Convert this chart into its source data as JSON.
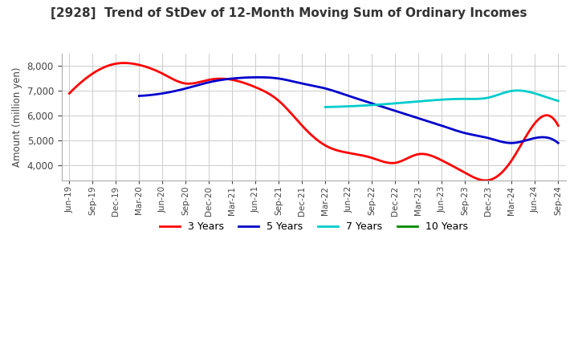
{
  "title": "[2928]  Trend of StDev of 12-Month Moving Sum of Ordinary Incomes",
  "ylabel": "Amount (million yen)",
  "ylim": [
    3400,
    8500
  ],
  "yticks": [
    4000,
    5000,
    6000,
    7000,
    8000
  ],
  "background_color": "#ffffff",
  "grid_color": "#cccccc",
  "series": {
    "3 Years": {
      "color": "#ff0000",
      "x": [
        0,
        3,
        6,
        9,
        12,
        15,
        18,
        21,
        24,
        27,
        30,
        33,
        36,
        39,
        42,
        45,
        48,
        51,
        54,
        57,
        60,
        63
      ],
      "y": [
        6900,
        7700,
        8100,
        8050,
        7700,
        7300,
        7450,
        7450,
        7150,
        6600,
        5600,
        4800,
        4500,
        4300,
        4100,
        4450,
        4200,
        3700,
        3400,
        4200,
        5700,
        5600
      ]
    },
    "5 Years": {
      "color": "#0000cc",
      "x": [
        9,
        12,
        15,
        18,
        21,
        24,
        27,
        30,
        33,
        36,
        39,
        42,
        45,
        48,
        51,
        54,
        57,
        60,
        63
      ],
      "y": [
        6800,
        6900,
        7100,
        7350,
        7500,
        7550,
        7500,
        7300,
        7100,
        6800,
        6500,
        6200,
        5900,
        5600,
        5300,
        5100,
        4900,
        5100,
        4900
      ]
    },
    "7 Years": {
      "color": "#00cccc",
      "x": [
        33,
        36,
        39,
        42,
        45,
        48,
        51,
        54,
        57,
        60,
        63
      ],
      "y": [
        6350,
        6380,
        6430,
        6500,
        6580,
        6650,
        6680,
        6730,
        7000,
        6900,
        6600
      ]
    },
    "10 Years": {
      "color": "#008800",
      "x": [],
      "y": []
    }
  },
  "xtick_labels": [
    "Jun-19",
    "Sep-19",
    "Dec-19",
    "Mar-20",
    "Jun-20",
    "Sep-20",
    "Dec-20",
    "Mar-21",
    "Jun-21",
    "Sep-21",
    "Dec-21",
    "Mar-22",
    "Jun-22",
    "Sep-22",
    "Dec-22",
    "Mar-23",
    "Jun-23",
    "Sep-23",
    "Dec-23",
    "Mar-24",
    "Jun-24",
    "Sep-24"
  ],
  "n_xticks": 22
}
